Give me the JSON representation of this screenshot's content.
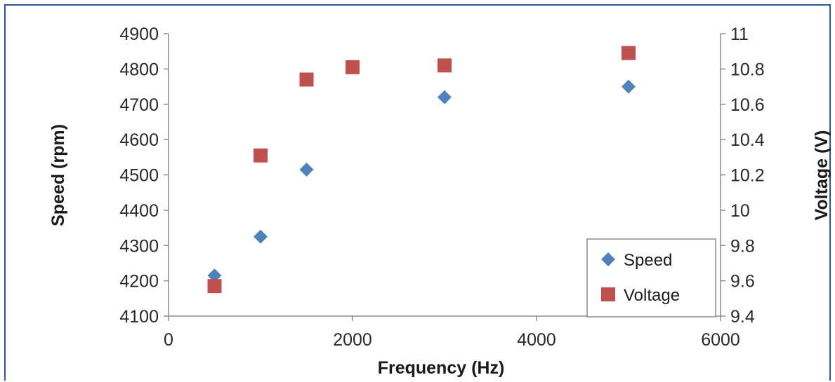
{
  "chart_data": {
    "type": "scatter",
    "xlabel": "Frequency (Hz)",
    "ylabel": "Speed (rpm)",
    "y2label": "Voltage (V)",
    "xlim": [
      0,
      6000
    ],
    "ylim": [
      4100,
      4900
    ],
    "y2lim": [
      9.4,
      11
    ],
    "xticks": [
      "0",
      "2000",
      "4000",
      "6000"
    ],
    "yticks": [
      "4100",
      "4200",
      "4300",
      "4400",
      "4500",
      "4600",
      "4700",
      "4800",
      "4900"
    ],
    "y2ticks": [
      "9.4",
      "9.6",
      "9.8",
      "10",
      "10.2",
      "10.4",
      "10.6",
      "10.8",
      "11"
    ],
    "grid": false,
    "legend_position": "bottom-right",
    "series": [
      {
        "name": "Speed",
        "axis": "left",
        "marker": "diamond",
        "color": "#4f81bd",
        "points": [
          [
            500,
            4215
          ],
          [
            1000,
            4325
          ],
          [
            1500,
            4515
          ],
          [
            2000,
            4805
          ],
          [
            3000,
            4720
          ],
          [
            5000,
            4750
          ]
        ]
      },
      {
        "name": "Voltage",
        "axis": "right",
        "marker": "square",
        "color": "#c0504d",
        "points": [
          [
            500,
            9.57
          ],
          [
            1000,
            10.31
          ],
          [
            1500,
            10.74
          ],
          [
            2000,
            10.81
          ],
          [
            3000,
            10.82
          ],
          [
            5000,
            10.89
          ]
        ]
      }
    ]
  }
}
